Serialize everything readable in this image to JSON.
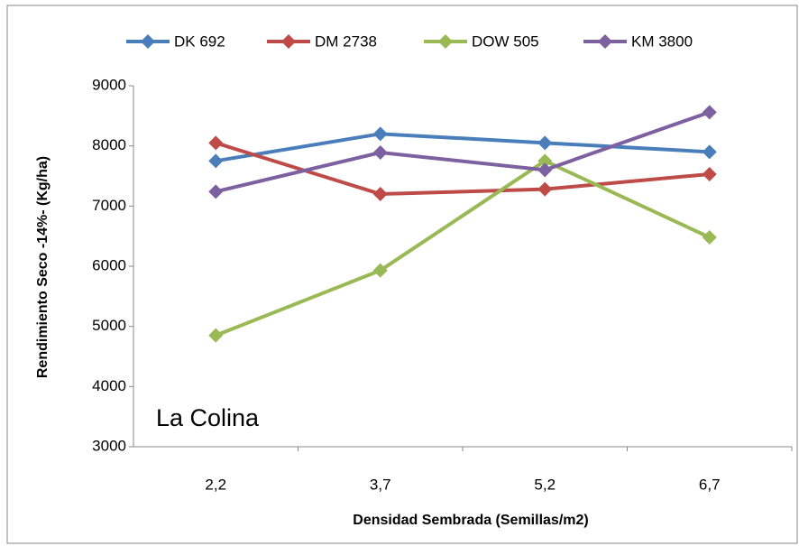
{
  "chart_data": {
    "type": "line",
    "categories": [
      "2,2",
      "3,7",
      "5,2",
      "6,7"
    ],
    "series": [
      {
        "name": "DK 692",
        "color": "#4a7ebb",
        "values": [
          7750,
          8200,
          8050,
          7900
        ]
      },
      {
        "name": "DM 2738",
        "color": "#be4b48",
        "values": [
          8050,
          7200,
          7280,
          7530
        ]
      },
      {
        "name": "DOW 505",
        "color": "#98b954",
        "values": [
          4850,
          5930,
          7750,
          6480
        ]
      },
      {
        "name": "KM 3800",
        "color": "#7d60a0",
        "values": [
          7240,
          7890,
          7600,
          8560
        ]
      }
    ],
    "ylim": [
      3000,
      9000
    ],
    "yticks": [
      3000,
      4000,
      5000,
      6000,
      7000,
      8000,
      9000
    ],
    "x_label": "Densidad Sembrada (Semillas/m2)",
    "y_label": "Rendimiento Seco -14%- (Kg/ha)",
    "annotation": "La Colina",
    "grid": false,
    "legend": "top"
  }
}
